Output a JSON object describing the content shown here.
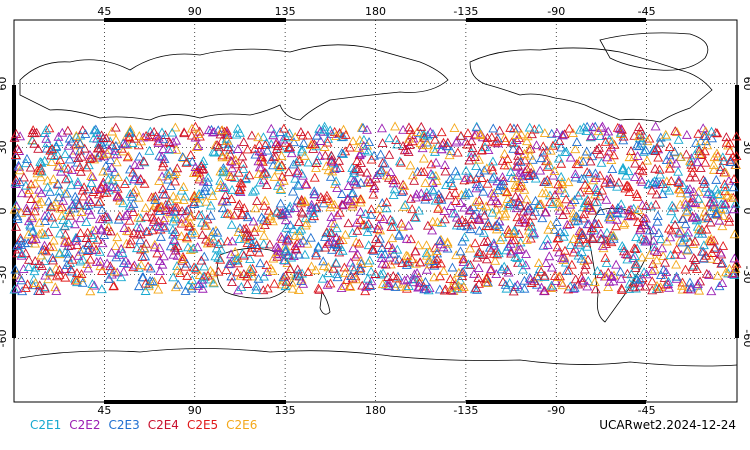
{
  "map": {
    "type": "scatter",
    "projection": "cylindrical equidistant, centered 180E",
    "lon_ticks": [
      "45",
      "90",
      "135",
      "180",
      "-135",
      "-90",
      "-45"
    ],
    "lat_ticks": [
      "60",
      "30",
      "0",
      "-30",
      "-60"
    ],
    "grid": "dotted",
    "marker": "open triangle",
    "lat_band": [
      -38,
      40
    ],
    "legend": [
      {
        "label": "C2E1",
        "color": "#17a9d0"
      },
      {
        "label": "C2E2",
        "color": "#9b1fb4"
      },
      {
        "label": "C2E3",
        "color": "#1f6fd0"
      },
      {
        "label": "C2E4",
        "color": "#c8102e"
      },
      {
        "label": "C2E5",
        "color": "#e01a1a"
      },
      {
        "label": "C2E6",
        "color": "#f4a81a"
      }
    ]
  },
  "footer": {
    "product": "UCARwet2.2024-12-24"
  }
}
